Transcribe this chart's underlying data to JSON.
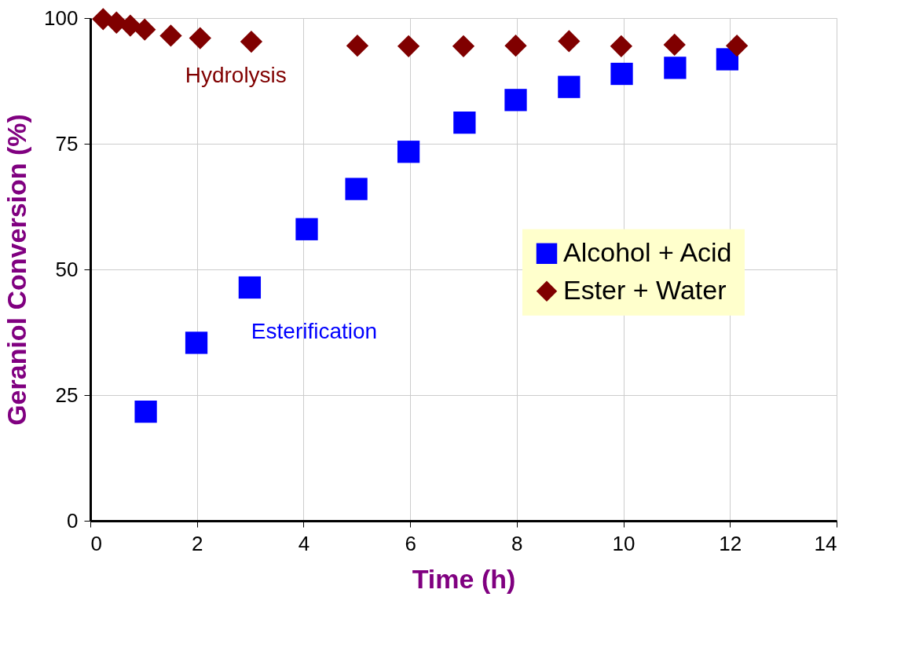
{
  "chart_data": {
    "type": "scatter",
    "xlabel": "Time (h)",
    "ylabel": "Geraniol Conversion (%)",
    "xlim": [
      0,
      14
    ],
    "xticks": [
      0,
      2,
      4,
      6,
      8,
      10,
      12,
      14
    ],
    "ylim": [
      0,
      100
    ],
    "yticks": [
      0,
      25,
      50,
      75,
      100
    ],
    "grid": true,
    "legend": "right",
    "series": [
      {
        "name": "Alcohol + Acid",
        "color": "#0000ff",
        "marker": "square",
        "x": [
          1.04,
          1.99,
          2.99,
          4.06,
          4.99,
          5.97,
          7.02,
          7.98,
          8.98,
          9.97,
          10.97,
          11.95
        ],
        "values": [
          21.7,
          35.4,
          46.4,
          58.0,
          66.0,
          73.4,
          79.2,
          83.7,
          86.3,
          88.9,
          90.1,
          91.8
        ]
      },
      {
        "name": "Ester + Water",
        "color": "#800000",
        "marker": "diamond",
        "x": [
          0.24,
          0.49,
          0.75,
          1.02,
          1.51,
          2.06,
          3.02,
          5.01,
          5.97,
          7.0,
          7.98,
          8.98,
          9.96,
          10.96,
          12.13
        ],
        "values": [
          99.8,
          99.1,
          98.5,
          97.7,
          96.5,
          96.0,
          95.3,
          94.5,
          94.4,
          94.4,
          94.5,
          95.4,
          94.4,
          94.7,
          94.5
        ]
      }
    ],
    "annotations": [
      "Esterification",
      "Hydrolysis"
    ]
  }
}
